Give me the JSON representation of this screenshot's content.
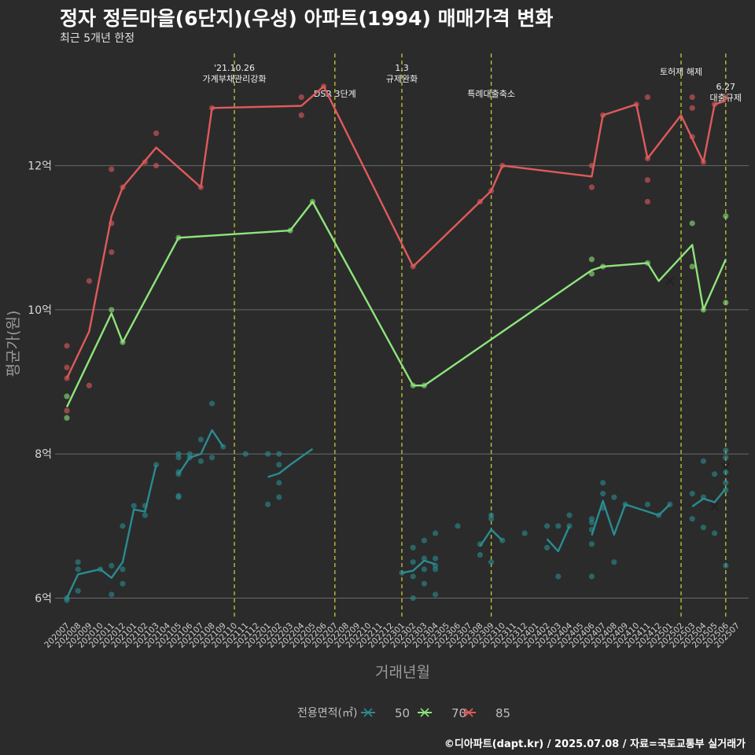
{
  "title": "정자 정든마을(6단지)(우성) 아파트(1994) 매매가격 변화",
  "subtitle": "최근 5개년 한정",
  "caption": "©디아파트(dapt.kr) / 2025.07.08 / 자료=국토교통부 실거래가",
  "chart_data": {
    "type": "line",
    "xlabel": "거래년월",
    "ylabel": "평균가(원)",
    "ylim": [
      5.7,
      13.6
    ],
    "yticks": [
      6,
      8,
      10,
      12
    ],
    "ytick_labels": [
      "6억",
      "8억",
      "10억",
      "12억"
    ],
    "grid": true,
    "x_categories": [
      "202007",
      "202008",
      "202009",
      "202010",
      "202011",
      "202012",
      "202101",
      "202102",
      "202103",
      "202104",
      "202105",
      "202106",
      "202107",
      "202108",
      "202109",
      "202110",
      "202111",
      "202112",
      "202201",
      "202202",
      "202203",
      "202204",
      "202205",
      "202206",
      "202207",
      "202208",
      "202209",
      "202210",
      "202211",
      "202212",
      "202301",
      "202302",
      "202303",
      "202304",
      "202305",
      "202306",
      "202307",
      "202308",
      "202309",
      "202310",
      "202311",
      "202312",
      "202401",
      "202402",
      "202403",
      "202404",
      "202405",
      "202406",
      "202407",
      "202408",
      "202409",
      "202410",
      "202411",
      "202412",
      "202501",
      "202502",
      "202503",
      "202504",
      "202505",
      "202506",
      "202507"
    ],
    "legend": {
      "title": "전용면적(㎡)",
      "position": "bottom",
      "items": [
        {
          "label": "50",
          "color": "#2a8c8f"
        },
        {
          "label": "70",
          "color": "#8ee57a"
        },
        {
          "label": "85",
          "color": "#e05a5a"
        }
      ]
    },
    "events": [
      {
        "x": "202110",
        "label": "'21.10.26\n가계부채관리강화",
        "level": 0
      },
      {
        "x": "202207",
        "label": "DSR 3단계",
        "level": 2
      },
      {
        "x": "202301",
        "label": "1.3\n규제완화",
        "level": 0
      },
      {
        "x": "202309",
        "label": "특례대출축소",
        "level": 2
      },
      {
        "x": "202502",
        "label": "토허제 해제",
        "level": 1
      },
      {
        "x": "202506",
        "label": "6.27\n대출규제",
        "level": 3
      }
    ],
    "series": [
      {
        "name": "85",
        "color": "#e05a5a",
        "line_segments": [
          [
            [
              "202007",
              9.05
            ],
            [
              "202009",
              9.7
            ],
            [
              "202011",
              11.3
            ],
            [
              "202012",
              11.7
            ],
            [
              "202103",
              12.25
            ],
            [
              "202107",
              11.7
            ],
            [
              "202108",
              12.8
            ],
            [
              "202204",
              12.83
            ],
            [
              "202206",
              13.1
            ],
            [
              "202302",
              10.6
            ],
            [
              "202308",
              11.5
            ],
            [
              "202309",
              11.65
            ],
            [
              "202310",
              12.0
            ],
            [
              "202406",
              11.85
            ],
            [
              "202407",
              12.7
            ],
            [
              "202410",
              12.85
            ],
            [
              "202411",
              12.1
            ],
            [
              "202502",
              12.7
            ],
            [
              "202504",
              12.05
            ],
            [
              "202505",
              12.85
            ],
            [
              "202506",
              12.9
            ]
          ]
        ],
        "points": [
          [
            "202007",
            9.5
          ],
          [
            "202007",
            9.2
          ],
          [
            "202007",
            9.05
          ],
          [
            "202007",
            8.6
          ],
          [
            "202009",
            10.4
          ],
          [
            "202009",
            8.95
          ],
          [
            "202011",
            11.95
          ],
          [
            "202011",
            11.2
          ],
          [
            "202011",
            10.8
          ],
          [
            "202012",
            11.7
          ],
          [
            "202102",
            12.05
          ],
          [
            "202103",
            12.45
          ],
          [
            "202103",
            12.0
          ],
          [
            "202107",
            11.7
          ],
          [
            "202108",
            12.8
          ],
          [
            "202204",
            12.95
          ],
          [
            "202204",
            12.7
          ],
          [
            "202206",
            13.1
          ],
          [
            "202302",
            10.6
          ],
          [
            "202308",
            11.5
          ],
          [
            "202309",
            11.65
          ],
          [
            "202310",
            12.0
          ],
          [
            "202406",
            12.0
          ],
          [
            "202406",
            11.7
          ],
          [
            "202407",
            12.7
          ],
          [
            "202410",
            12.85
          ],
          [
            "202411",
            12.95
          ],
          [
            "202411",
            11.8
          ],
          [
            "202411",
            11.5
          ],
          [
            "202411",
            12.1
          ],
          [
            "202503",
            12.95
          ],
          [
            "202503",
            12.8
          ],
          [
            "202503",
            12.4
          ],
          [
            "202504",
            12.05
          ],
          [
            "202505",
            12.85
          ],
          [
            "202506",
            12.95
          ]
        ],
        "x_markers": []
      },
      {
        "name": "70",
        "color": "#8ee57a",
        "line_segments": [
          [
            [
              "202007",
              8.65
            ],
            [
              "202011",
              9.95
            ],
            [
              "202012",
              9.55
            ],
            [
              "202105",
              11.0
            ],
            [
              "202203",
              11.1
            ],
            [
              "202205",
              11.5
            ],
            [
              "202302",
              8.95
            ],
            [
              "202303",
              8.95
            ],
            [
              "202406",
              10.55
            ],
            [
              "202407",
              10.6
            ],
            [
              "202411",
              10.65
            ],
            [
              "202412",
              10.4
            ],
            [
              "202503",
              10.9
            ],
            [
              "202504",
              10.0
            ],
            [
              "202506",
              10.7
            ]
          ]
        ],
        "points": [
          [
            "202007",
            8.8
          ],
          [
            "202007",
            8.5
          ],
          [
            "202011",
            10.0
          ],
          [
            "202012",
            9.55
          ],
          [
            "202105",
            11.0
          ],
          [
            "202203",
            11.1
          ],
          [
            "202205",
            11.5
          ],
          [
            "202302",
            8.95
          ],
          [
            "202303",
            8.95
          ],
          [
            "202406",
            10.7
          ],
          [
            "202406",
            10.5
          ],
          [
            "202407",
            10.6
          ],
          [
            "202411",
            10.65
          ],
          [
            "202503",
            11.2
          ],
          [
            "202503",
            10.6
          ],
          [
            "202504",
            10.0
          ],
          [
            "202506",
            11.3
          ],
          [
            "202506",
            10.1
          ]
        ],
        "x_markers": [
          [
            "202501",
            10.4
          ]
        ]
      },
      {
        "name": "50",
        "color": "#2a8c8f",
        "line_segments": [
          [
            [
              "202007",
              6.0
            ],
            [
              "202008",
              6.33
            ],
            [
              "202010",
              6.4
            ],
            [
              "202011",
              6.28
            ],
            [
              "202012",
              6.5
            ],
            [
              "202101",
              7.23
            ],
            [
              "202102",
              7.2
            ],
            [
              "202103",
              7.85
            ]
          ],
          [
            [
              "202105",
              7.72
            ],
            [
              "202106",
              7.95
            ],
            [
              "202107",
              8.0
            ],
            [
              "202108",
              8.33
            ],
            [
              "202109",
              8.1
            ]
          ],
          [
            [
              "202201",
              7.68
            ],
            [
              "202202",
              7.73
            ],
            [
              "202203",
              7.85
            ],
            [
              "202205",
              8.07
            ]
          ],
          [
            [
              "202301",
              6.35
            ],
            [
              "202302",
              6.38
            ],
            [
              "202303",
              6.52
            ],
            [
              "202304",
              6.47
            ]
          ],
          [
            [
              "202308",
              6.72
            ],
            [
              "202309",
              6.95
            ],
            [
              "202310",
              6.8
            ]
          ],
          [
            [
              "202402",
              6.82
            ],
            [
              "202403",
              6.65
            ],
            [
              "202404",
              7.0
            ]
          ],
          [
            [
              "202406",
              6.87
            ],
            [
              "202407",
              7.35
            ],
            [
              "202408",
              6.88
            ],
            [
              "202409",
              7.3
            ],
            [
              "202411",
              7.2
            ],
            [
              "202412",
              7.15
            ],
            [
              "202501",
              7.3
            ]
          ],
          [
            [
              "202503",
              7.27
            ],
            [
              "202504",
              7.38
            ],
            [
              "202505",
              7.33
            ],
            [
              "202506",
              7.52
            ]
          ]
        ],
        "points": [
          [
            "202007",
            6.0
          ],
          [
            "202007",
            5.97
          ],
          [
            "202008",
            6.5
          ],
          [
            "202008",
            6.4
          ],
          [
            "202008",
            6.1
          ],
          [
            "202010",
            6.4
          ],
          [
            "202011",
            6.45
          ],
          [
            "202011",
            6.05
          ],
          [
            "202012",
            7.0
          ],
          [
            "202012",
            6.4
          ],
          [
            "202012",
            6.2
          ],
          [
            "202101",
            7.28
          ],
          [
            "202102",
            7.28
          ],
          [
            "202102",
            7.15
          ],
          [
            "202103",
            7.85
          ],
          [
            "202105",
            8.0
          ],
          [
            "202105",
            7.95
          ],
          [
            "202105",
            7.75
          ],
          [
            "202105",
            7.72
          ],
          [
            "202105",
            7.42
          ],
          [
            "202105",
            7.4
          ],
          [
            "202106",
            8.0
          ],
          [
            "202106",
            7.95
          ],
          [
            "202107",
            8.2
          ],
          [
            "202107",
            7.9
          ],
          [
            "202108",
            8.7
          ],
          [
            "202108",
            7.95
          ],
          [
            "202109",
            8.1
          ],
          [
            "202111",
            8.0
          ],
          [
            "202201",
            8.0
          ],
          [
            "202201",
            7.3
          ],
          [
            "202202",
            8.0
          ],
          [
            "202202",
            7.85
          ],
          [
            "202202",
            7.6
          ],
          [
            "202202",
            7.4
          ],
          [
            "202301",
            6.35
          ],
          [
            "202302",
            6.7
          ],
          [
            "202302",
            6.5
          ],
          [
            "202302",
            6.3
          ],
          [
            "202302",
            6.0
          ],
          [
            "202303",
            6.8
          ],
          [
            "202303",
            6.55
          ],
          [
            "202303",
            6.4
          ],
          [
            "202303",
            6.2
          ],
          [
            "202304",
            6.9
          ],
          [
            "202304",
            6.55
          ],
          [
            "202304",
            6.45
          ],
          [
            "202304",
            6.4
          ],
          [
            "202304",
            6.05
          ],
          [
            "202306",
            7.0
          ],
          [
            "202308",
            6.75
          ],
          [
            "202308",
            6.6
          ],
          [
            "202309",
            7.15
          ],
          [
            "202309",
            7.1
          ],
          [
            "202309",
            6.5
          ],
          [
            "202310",
            6.8
          ],
          [
            "202312",
            6.9
          ],
          [
            "202402",
            7.0
          ],
          [
            "202402",
            6.7
          ],
          [
            "202403",
            7.0
          ],
          [
            "202403",
            6.3
          ],
          [
            "202404",
            7.15
          ],
          [
            "202404",
            7.0
          ],
          [
            "202406",
            7.1
          ],
          [
            "202406",
            7.05
          ],
          [
            "202406",
            6.95
          ],
          [
            "202406",
            6.75
          ],
          [
            "202406",
            6.3
          ],
          [
            "202407",
            7.6
          ],
          [
            "202407",
            7.45
          ],
          [
            "202407",
            7.25
          ],
          [
            "202408",
            7.4
          ],
          [
            "202408",
            6.5
          ],
          [
            "202409",
            7.3
          ],
          [
            "202411",
            7.3
          ],
          [
            "202412",
            7.15
          ],
          [
            "202501",
            7.3
          ],
          [
            "202503",
            7.45
          ],
          [
            "202503",
            7.1
          ],
          [
            "202504",
            7.9
          ],
          [
            "202504",
            7.4
          ],
          [
            "202504",
            6.98
          ],
          [
            "202505",
            7.72
          ],
          [
            "202505",
            6.9
          ],
          [
            "202506",
            8.05
          ],
          [
            "202506",
            7.95
          ],
          [
            "202506",
            7.75
          ],
          [
            "202506",
            7.6
          ],
          [
            "202506",
            7.5
          ],
          [
            "202506",
            6.45
          ]
        ],
        "x_markers": [
          [
            "202505",
            7.27
          ],
          [
            "202506",
            7.82
          ]
        ]
      }
    ]
  }
}
